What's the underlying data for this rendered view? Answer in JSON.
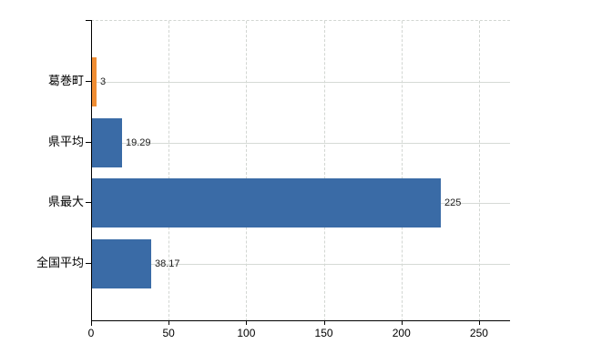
{
  "chart_data": {
    "type": "bar",
    "orientation": "horizontal",
    "title": "",
    "categories": [
      "葛巻町",
      "県平均",
      "県最大",
      "全国平均"
    ],
    "values": [
      3,
      19.29,
      225,
      38.17
    ],
    "value_labels": [
      "3",
      "19.29",
      "225",
      "38.17"
    ],
    "bar_colors": [
      "#ef8d33",
      "#3a6ba6",
      "#3a6ba6",
      "#3a6ba6"
    ],
    "xlabel": "",
    "ylabel": "",
    "xlim": [
      0,
      270
    ],
    "xticks": [
      0,
      50,
      100,
      150,
      200,
      250
    ],
    "xtick_labels": [
      "0",
      "50",
      "100",
      "150",
      "200",
      "250"
    ],
    "grid": "both",
    "legend": false,
    "colors": {
      "accent_orange": "#ef8d33",
      "accent_blue": "#3a6ba6",
      "axis": "#000000",
      "gridline": "#d2d6d2",
      "background": "#ffffff",
      "text": "#000000"
    }
  }
}
